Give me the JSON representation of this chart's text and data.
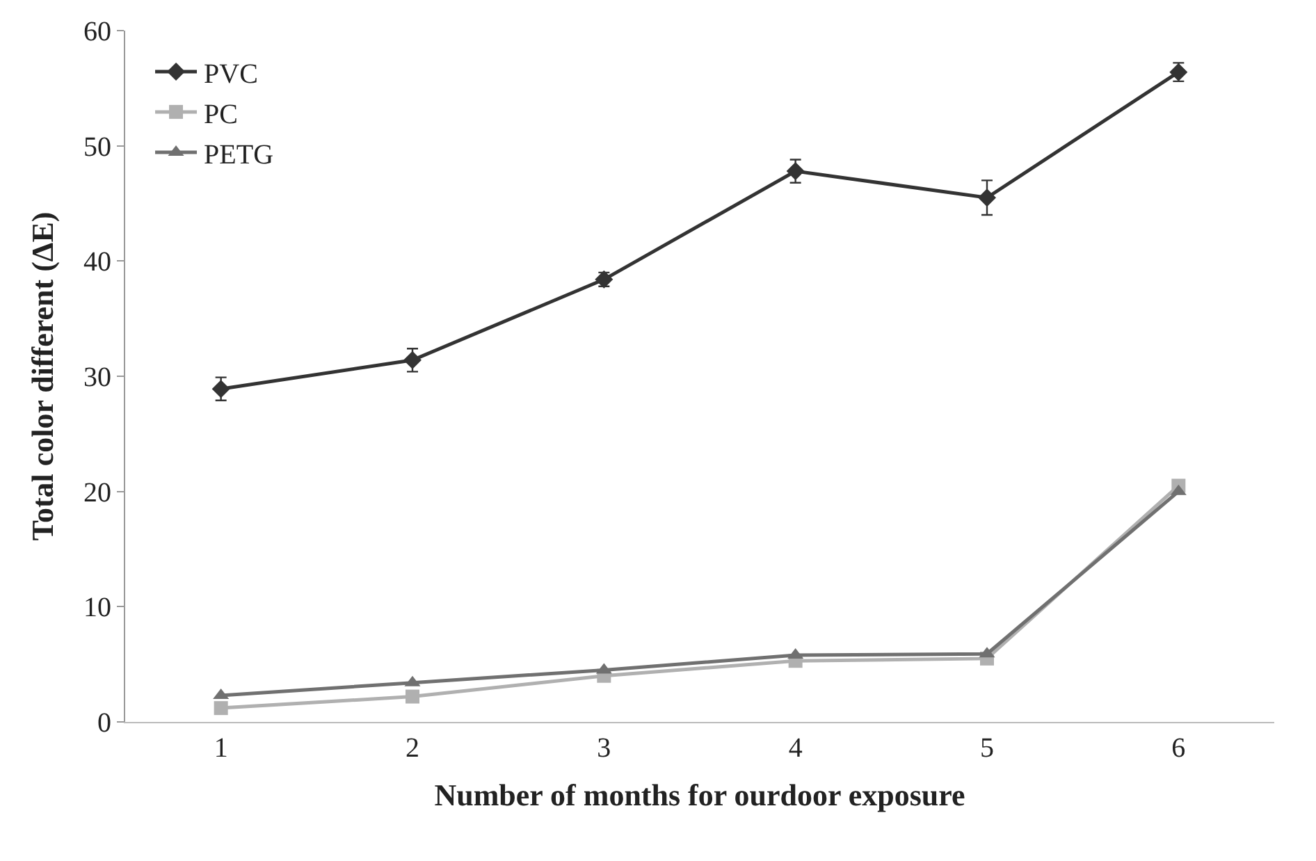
{
  "chart_data": {
    "type": "line",
    "xlabel": "Number of months for ourdoor exposure",
    "ylabel": "Total color different (ΔE)",
    "categories": [
      "1",
      "2",
      "3",
      "4",
      "5",
      "6"
    ],
    "series": [
      {
        "name": "PVC",
        "color": "#333333",
        "marker": "diamond",
        "values": [
          28.9,
          31.4,
          38.4,
          47.8,
          45.5,
          56.4
        ],
        "errors": [
          1,
          1,
          0.6,
          1,
          1.5,
          0.8
        ]
      },
      {
        "name": "PC",
        "color": "#b0b0b0",
        "marker": "square",
        "values": [
          1.2,
          2.2,
          4,
          5.3,
          5.5,
          20.5
        ]
      },
      {
        "name": "PETG",
        "color": "#707070",
        "marker": "triangle",
        "values": [
          2.3,
          3.4,
          4.5,
          5.8,
          5.9,
          20
        ]
      }
    ],
    "ylim": [
      0,
      60
    ],
    "yticks": [
      0,
      10,
      20,
      30,
      40,
      50,
      60
    ],
    "legend": "top left",
    "line_style": "solid"
  }
}
